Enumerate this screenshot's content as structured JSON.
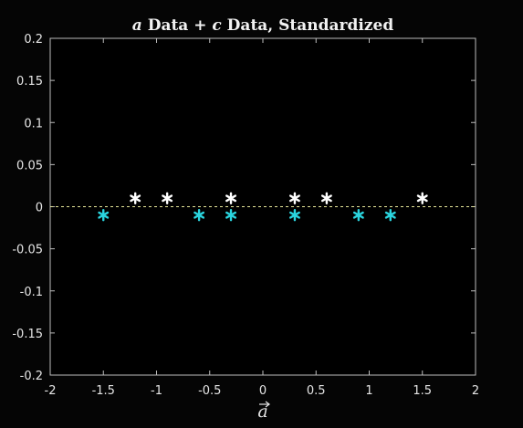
{
  "chart_data": {
    "type": "scatter",
    "title": "a⃗ Data + c⃗ Data, Standardized",
    "title_parts": {
      "a_symbol": "a",
      "middle": " Data + ",
      "c_symbol": "c",
      "end": " Data, Standardized"
    },
    "xlabel": "a",
    "ylabel": "",
    "xlim": [
      -2,
      2
    ],
    "ylim": [
      -0.2,
      0.2
    ],
    "xticks": [
      -2,
      -1.5,
      -1,
      -0.5,
      0,
      0.5,
      1,
      1.5,
      2
    ],
    "xtick_labels": [
      "-2",
      "-1.5",
      "-1",
      "-0.5",
      "0",
      "0.5",
      "1",
      "1.5",
      "2"
    ],
    "yticks": [
      0.2,
      0.15,
      0.1,
      0.05,
      0,
      -0.05,
      -0.1,
      -0.15,
      -0.2
    ],
    "ytick_labels": [
      "0.2",
      "0.15",
      "0.1",
      "0.05",
      "0",
      "-0.05",
      "-0.1",
      "-0.15",
      "-0.2"
    ],
    "grid": false,
    "reference_line": {
      "y": 0,
      "style": "dashed",
      "color": "#e8e89a"
    },
    "marker": "asterisk",
    "series": [
      {
        "color": "#ffffff",
        "points": [
          {
            "x": -1.2,
            "y": 0.01
          },
          {
            "x": -0.9,
            "y": 0.01
          },
          {
            "x": -0.3,
            "y": 0.01
          },
          {
            "x": 0.3,
            "y": 0.01
          },
          {
            "x": 0.6,
            "y": 0.01
          },
          {
            "x": 1.5,
            "y": 0.01
          }
        ]
      },
      {
        "color": "#2ad4de",
        "points": [
          {
            "x": -1.5,
            "y": -0.01
          },
          {
            "x": -0.6,
            "y": -0.01
          },
          {
            "x": -0.3,
            "y": -0.01
          },
          {
            "x": 0.3,
            "y": -0.01
          },
          {
            "x": 0.9,
            "y": -0.01
          },
          {
            "x": 1.2,
            "y": -0.01
          }
        ]
      }
    ]
  }
}
